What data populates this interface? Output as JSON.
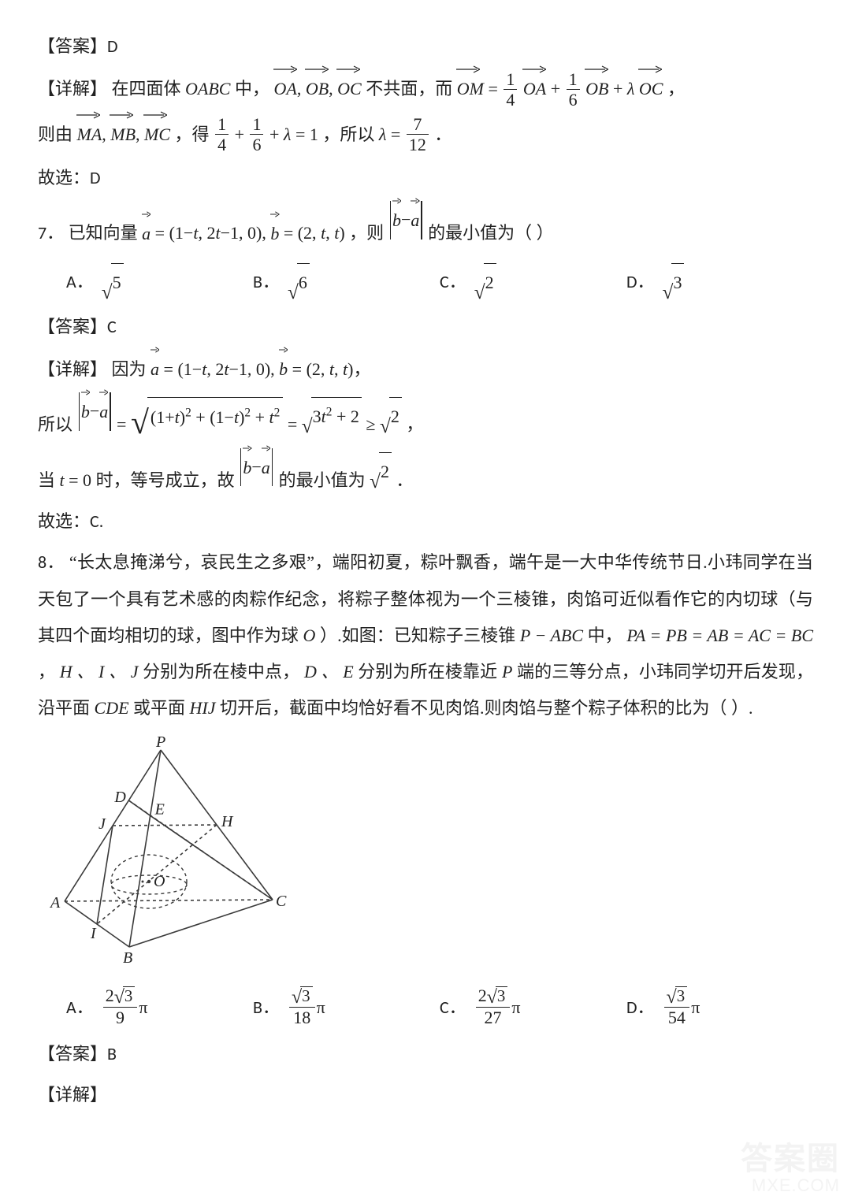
{
  "labels": {
    "answer": "【答案】",
    "explain": "【详解】",
    "therefore_select": "故选："
  },
  "q6": {
    "answer_letter": "D",
    "explain_prefix": "在四面体",
    "tetra": "OABC",
    "explain_mid1": "中，",
    "vecs_OA_OB_OC": [
      "OA",
      "OB",
      "OC"
    ],
    "not_coplanar": "不共面，而",
    "eq_OM_lhs": "OM",
    "coef1_num": "1",
    "coef1_den": "4",
    "coef2_num": "1",
    "coef2_den": "6",
    "lambda": "λ",
    "line2_prefix": "则由",
    "vecs_MA_MB_MC": [
      "MA",
      "MB",
      "MC"
    ],
    "line2_mid": "，得",
    "sum_eq": " = 1",
    "so_text": "，所以",
    "lambda_val_num": "7",
    "lambda_val_den": "12",
    "period": "．",
    "select": "D"
  },
  "q7": {
    "number": "7．",
    "stem_prefix": "已知向量",
    "a_def": "(1−t, 2t−1, 0)",
    "b_def": "(2, t, t)",
    "stem_mid": "，则",
    "stem_tail": "的最小值为（   ）",
    "options": {
      "A": "√5",
      "B": "√6",
      "C": "√2",
      "D": "√3"
    },
    "answer_letter": "C",
    "exp_l1_prefix": "因为",
    "exp_l2_prefix": "所以",
    "sqrt_expr": "(1+t)² + (1−t)² + t²",
    "simplified": "3t² + 2",
    "ge": " ≥ ",
    "exp_l3_prefix": "当",
    "t_eq": "t = 0",
    "exp_l3_mid": "时，等号成立，故",
    "exp_l3_tail": "的最小值为",
    "select": "C."
  },
  "q8": {
    "number": "8．",
    "stem": "“长太息掩涕兮，哀民生之多艰”，端阳初夏，粽叶飘香，端午是一大中华传统节日.小玮同学在当天包了一个具有艺术感的肉粽作纪念，将粽子整体视为一个三棱锥，肉馅可近似看作它的内切球（与其四个面均相切的球，图中作为球",
    "sphere_center": "O",
    "stem2": "）.如图：已知粽子三棱锥",
    "tetra": "P − ABC",
    "stem3": "中，",
    "eq_edges": "PA = PB = AB = AC = BC",
    "stem4": "，",
    "HIJ": "H 、 I 、 J",
    "stem5": "分别为所在棱中点，",
    "DE": "D 、 E",
    "stem6": "分别为所在棱靠近",
    "P": "P",
    "stem7": "端的三等分点，小玮同学切开后发现，沿平面",
    "CDE": "CDE",
    "stem8": "或平面",
    "HIJ2": "HIJ",
    "stem9": "切开后，截面中均恰好看不见肉馅.则肉馅与整个粽子体积的比为（    ）.",
    "options": {
      "A": {
        "num": "2√3",
        "den": "9"
      },
      "B": {
        "num": "√3",
        "den": "18"
      },
      "C": {
        "num": "2√3",
        "den": "27"
      },
      "D": {
        "num": "√3",
        "den": "54"
      }
    },
    "answer_letter": "B"
  },
  "diagram": {
    "labels": {
      "P": "P",
      "A": "A",
      "B": "B",
      "C": "C",
      "D": "D",
      "E": "E",
      "H": "H",
      "I": "I",
      "J": "J",
      "O": "O"
    },
    "stroke": "#3a3a3a",
    "dash": "4,4",
    "label_font": "italic 20px 'Times New Roman', serif",
    "label_color": "#222222"
  },
  "watermark": {
    "line1": "答案圈",
    "line2": "MXE.COM"
  }
}
